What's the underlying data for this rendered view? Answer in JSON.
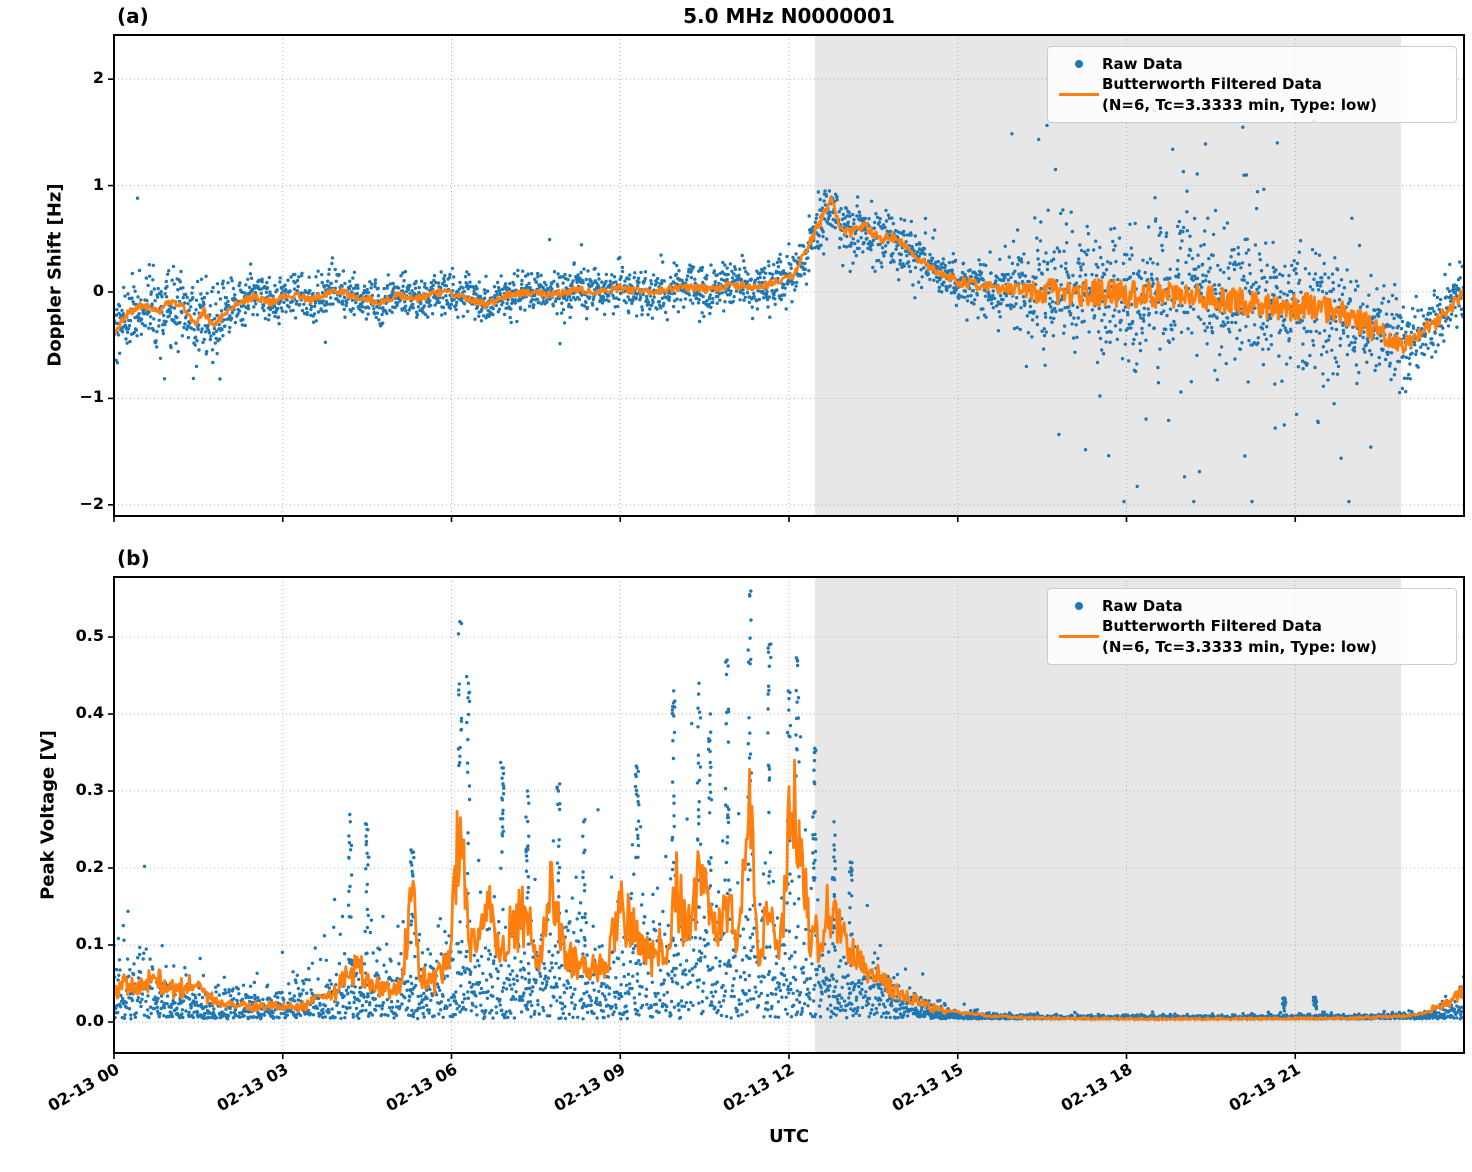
{
  "title": "5.0 MHz N0000001",
  "xlabel": "UTC",
  "panel_a_tag": "(a)",
  "panel_b_tag": "(b)",
  "legend": {
    "raw_label": "Raw Data",
    "filtered_label_line1": "Butterworth Filtered Data",
    "filtered_label_line2": "(N=6, Tc=3.3333 min, Type: low)"
  },
  "colors": {
    "raw": "#1f77b4",
    "filtered": "#ff7f0e",
    "shade": "#e7e7e7",
    "grid": "#b0b0b0",
    "spine": "#000000"
  },
  "x_axis": {
    "lim_hours": [
      0,
      24
    ],
    "tick_hours": [
      0,
      3,
      6,
      9,
      12,
      15,
      18,
      21
    ],
    "tick_labels": [
      "02-13 00",
      "02-13 03",
      "02-13 06",
      "02-13 09",
      "02-13 12",
      "02-13 15",
      "02-13 18",
      "02-13 21"
    ]
  },
  "chart_data": [
    {
      "id": "a",
      "type": "scatter",
      "title": "5.0 MHz N0000001",
      "ylabel": "Doppler Shift [Hz]",
      "xlabel": "UTC",
      "ylim": [
        -2.105,
        2.415
      ],
      "yticks": [
        -2,
        -1,
        0,
        1,
        2
      ],
      "ytick_labels": [
        "−2",
        "−1",
        "0",
        "1",
        "2"
      ],
      "shaded_hours": [
        12.46,
        22.88
      ],
      "legend_position": "upper right",
      "grid": true,
      "seed": 42,
      "n_points": 3600,
      "series": [
        {
          "name": "Raw Data",
          "kind": "scatter"
        },
        {
          "name": "Butterworth Filtered Data (N=6, Tc=3.3333 min, Type: low)",
          "kind": "line"
        }
      ],
      "filtered_line": {
        "t": [
          0,
          0.25,
          0.5,
          0.8,
          1.0,
          1.2,
          1.45,
          1.6,
          1.75,
          1.95,
          2.2,
          2.5,
          2.8,
          3.1,
          3.5,
          3.9,
          4.3,
          4.7,
          5.0,
          5.4,
          5.8,
          6.2,
          6.6,
          7.0,
          7.4,
          7.8,
          8.2,
          8.6,
          9.0,
          9.4,
          9.8,
          10.2,
          10.6,
          11.0,
          11.4,
          11.8,
          12.1,
          12.35,
          12.55,
          12.75,
          12.9,
          13.1,
          13.35,
          13.6,
          13.9,
          14.2,
          14.6,
          15.0,
          15.5,
          16.0,
          17.0,
          18.0,
          19.0,
          20.0,
          20.8,
          21.4,
          22.0,
          22.5,
          22.9,
          23.2,
          23.5,
          23.8,
          24.0
        ],
        "v": [
          -0.38,
          -0.2,
          -0.12,
          -0.18,
          -0.08,
          -0.12,
          -0.3,
          -0.18,
          -0.32,
          -0.22,
          -0.1,
          -0.04,
          -0.1,
          -0.02,
          -0.08,
          0.02,
          -0.04,
          -0.1,
          -0.03,
          -0.06,
          0.0,
          -0.04,
          -0.12,
          -0.03,
          0.0,
          -0.03,
          0.02,
          0.0,
          0.04,
          0.0,
          0.02,
          0.05,
          0.02,
          0.07,
          0.04,
          0.1,
          0.16,
          0.45,
          0.65,
          0.87,
          0.62,
          0.55,
          0.62,
          0.5,
          0.52,
          0.35,
          0.2,
          0.1,
          0.05,
          0.02,
          0.0,
          -0.02,
          -0.03,
          -0.08,
          -0.15,
          -0.12,
          -0.25,
          -0.38,
          -0.52,
          -0.38,
          -0.3,
          -0.12,
          0.0
        ]
      },
      "line_noise": {
        "t": [
          0,
          12,
          12.5,
          14,
          16,
          16.5,
          22.2,
          22.8,
          24
        ],
        "amp": [
          0.035,
          0.035,
          0.05,
          0.045,
          0.05,
          0.13,
          0.13,
          0.08,
          0.06
        ]
      },
      "raw_sigma": {
        "t": [
          0,
          0.5,
          1.0,
          1.6,
          2.2,
          3,
          6,
          9,
          12,
          12.5,
          13,
          14,
          15,
          15.8,
          16.5,
          17.5,
          19,
          21,
          22,
          22.9,
          23.5,
          24
        ],
        "s": [
          0.14,
          0.17,
          0.18,
          0.2,
          0.12,
          0.1,
          0.1,
          0.1,
          0.11,
          0.14,
          0.14,
          0.12,
          0.12,
          0.16,
          0.28,
          0.32,
          0.32,
          0.3,
          0.26,
          0.2,
          0.12,
          0.14
        ]
      },
      "outlier_prob": {
        "t": [
          0,
          15.2,
          15.8,
          16.5,
          18,
          20,
          22,
          22.9,
          23.2,
          24
        ],
        "p": [
          0.006,
          0.006,
          0.03,
          0.09,
          0.11,
          0.11,
          0.08,
          0.04,
          0.01,
          0.01
        ]
      },
      "raw_value_range": [
        -1.97,
        1.7
      ]
    },
    {
      "id": "b",
      "type": "scatter",
      "ylabel": "Peak Voltage [V]",
      "xlabel": "UTC",
      "ylim": [
        -0.0403,
        0.578
      ],
      "yticks": [
        0,
        0.1,
        0.2,
        0.3,
        0.4,
        0.5
      ],
      "ytick_labels": [
        "0.0",
        "0.1",
        "0.2",
        "0.3",
        "0.4",
        "0.5"
      ],
      "shaded_hours": [
        12.46,
        22.88
      ],
      "legend_position": "upper right",
      "grid": true,
      "seed": 7,
      "n_points": 3200,
      "series": [
        {
          "name": "Raw Data",
          "kind": "scatter"
        },
        {
          "name": "Butterworth Filtered Data (N=6, Tc=3.3333 min, Type: low)",
          "kind": "line"
        }
      ],
      "filtered_line": {
        "t": [
          0,
          0.2,
          0.45,
          0.7,
          0.9,
          1.1,
          1.35,
          1.6,
          1.9,
          2.2,
          2.6,
          3.0,
          3.3,
          3.6,
          3.9,
          4.15,
          4.35,
          4.6,
          4.85,
          5.1,
          5.3,
          5.45,
          5.7,
          5.95,
          6.15,
          6.35,
          6.6,
          6.85,
          7.05,
          7.3,
          7.55,
          7.8,
          7.95,
          8.15,
          8.4,
          8.7,
          9.0,
          9.3,
          9.55,
          9.8,
          10.0,
          10.2,
          10.45,
          10.7,
          10.9,
          11.1,
          11.3,
          11.45,
          11.65,
          11.85,
          12.0,
          12.15,
          12.35,
          12.55,
          12.75,
          12.95,
          13.15,
          13.4,
          13.7,
          14.0,
          14.4,
          14.8,
          15.2,
          15.7,
          16.5,
          18,
          20,
          22,
          23.0,
          23.3,
          23.6,
          23.8,
          24.0
        ],
        "v": [
          0.035,
          0.05,
          0.042,
          0.06,
          0.05,
          0.042,
          0.048,
          0.036,
          0.022,
          0.02,
          0.021,
          0.02,
          0.019,
          0.028,
          0.035,
          0.06,
          0.07,
          0.05,
          0.042,
          0.05,
          0.17,
          0.06,
          0.05,
          0.08,
          0.26,
          0.1,
          0.16,
          0.09,
          0.12,
          0.14,
          0.08,
          0.18,
          0.1,
          0.08,
          0.065,
          0.07,
          0.15,
          0.11,
          0.085,
          0.1,
          0.17,
          0.12,
          0.2,
          0.13,
          0.16,
          0.1,
          0.31,
          0.09,
          0.14,
          0.1,
          0.25,
          0.29,
          0.12,
          0.1,
          0.16,
          0.1,
          0.1,
          0.07,
          0.05,
          0.035,
          0.022,
          0.015,
          0.011,
          0.007,
          0.005,
          0.004,
          0.004,
          0.005,
          0.008,
          0.012,
          0.022,
          0.03,
          0.045
        ]
      },
      "band_upper": {
        "t": [
          0,
          0.35,
          0.7,
          1.1,
          1.5,
          2.0,
          2.6,
          3.1,
          3.6,
          4.0,
          4.5,
          5.0,
          5.5,
          6.0,
          6.5,
          7.0,
          7.5,
          8.0,
          8.5,
          9.0,
          9.5,
          10.0,
          10.5,
          11.0,
          11.5,
          12.0,
          12.4,
          12.8,
          13.2,
          13.6,
          14.0,
          14.5,
          15.0,
          15.5,
          16.0,
          17,
          19,
          21,
          22.5,
          23.2,
          23.5,
          23.8,
          24
        ],
        "u": [
          0.09,
          0.12,
          0.08,
          0.05,
          0.05,
          0.045,
          0.05,
          0.045,
          0.07,
          0.1,
          0.09,
          0.1,
          0.12,
          0.12,
          0.13,
          0.13,
          0.14,
          0.15,
          0.11,
          0.13,
          0.16,
          0.18,
          0.2,
          0.2,
          0.19,
          0.19,
          0.17,
          0.12,
          0.1,
          0.09,
          0.05,
          0.025,
          0.012,
          0.008,
          0.006,
          0.005,
          0.005,
          0.005,
          0.006,
          0.01,
          0.015,
          0.03,
          0.055
        ]
      },
      "baseline": 0.004,
      "spikes": [
        [
          4.2,
          0.26
        ],
        [
          4.5,
          0.25
        ],
        [
          5.3,
          0.22
        ],
        [
          6.15,
          0.52
        ],
        [
          6.3,
          0.44
        ],
        [
          6.9,
          0.33
        ],
        [
          7.35,
          0.3
        ],
        [
          7.9,
          0.3
        ],
        [
          8.35,
          0.26
        ],
        [
          9.3,
          0.33
        ],
        [
          9.95,
          0.43
        ],
        [
          10.4,
          0.44
        ],
        [
          10.6,
          0.4
        ],
        [
          10.9,
          0.47
        ],
        [
          11.3,
          0.555
        ],
        [
          11.65,
          0.49
        ],
        [
          12.0,
          0.42
        ],
        [
          12.15,
          0.47
        ],
        [
          12.45,
          0.35
        ],
        [
          12.8,
          0.26
        ],
        [
          13.1,
          0.2
        ],
        [
          20.8,
          0.022
        ],
        [
          21.35,
          0.025
        ]
      ],
      "raw_value_range": [
        0.0015,
        0.57
      ]
    }
  ]
}
